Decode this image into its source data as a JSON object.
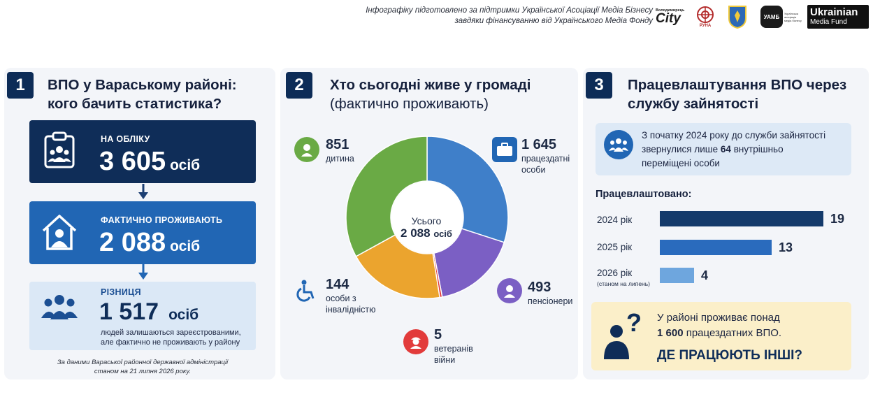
{
  "header": {
    "credit_line1": "Інфографіку підготовлено за підтримки Української Асоціації Медіа Бізнесу",
    "credit_line2": "завдяки фінансуванню від Українського Медіа Фонду",
    "logo_city_small": "Володимирець",
    "logo_city": "City",
    "logo_runa": "РУНА",
    "logo_uamb": "УАМБ",
    "logo_uamb_side": "Українська асоціація медіа бізнесу",
    "logo_umf1": "Ukrainian",
    "logo_umf2": "Media Fund"
  },
  "panel1": {
    "number": "1",
    "title_line1": "ВПО у Вараському районі:",
    "title_line2": "кого бачить статистика?",
    "registered_label": "НА ОБЛІКУ",
    "registered_value": "3 605",
    "registered_unit": "осіб",
    "actual_label": "ФАКТИЧНО ПРОЖИВАЮТЬ",
    "actual_value": "2 088",
    "actual_unit": "осіб",
    "diff_label": "РІЗНИЦЯ",
    "diff_value": "1 517",
    "diff_unit": "осіб",
    "diff_note_line1": "людей залишаються зареєстрованими,",
    "diff_note_line2": "але фактично не проживають у району",
    "source_line1": "За даними Вараської районної державної адміністрації",
    "source_line2": "станом на 21 липня 2026 року."
  },
  "panel2": {
    "number": "2",
    "title_line1": "Хто сьогодні живе у громаді",
    "title_line2": "(фактично проживають)",
    "center_label": "Усього",
    "center_value": "2 088",
    "center_unit": "осіб",
    "labels": {
      "child_value": "851",
      "child_text": "дитина",
      "workers_value": "1 645",
      "workers_text1": "працездатні",
      "workers_text2": "особи",
      "disabled_value": "144",
      "disabled_text1": "особи з",
      "disabled_text2": "інвалідністю",
      "veterans_value": "5",
      "veterans_text1": "ветеранів",
      "veterans_text2": "війни",
      "pensioners_value": "493",
      "pensioners_text": "пенсіонери"
    }
  },
  "panel3": {
    "number": "3",
    "title_line1": "Працевлаштування ВПО через",
    "title_line2": "службу зайнятості",
    "info_line1": "З початку 2024 року до служби зайнятості",
    "info_line2_pre": "звернулися лише",
    "info_line2_num": "64",
    "info_line2_post": "внутрішньо",
    "info_line3": "переміщені особи",
    "employed_heading": "Працевлаштовано:",
    "year_note": "(станом на липень)",
    "question_line1": "У районі проживає понад",
    "question_line2_num": "1 600",
    "question_line2_post": "працездатних ВПО.",
    "question_cta": "ДЕ ПРАЦЮЮТЬ ІНШІ?"
  },
  "chart_data": [
    {
      "type": "pie",
      "title": "Хто сьогодні живе у громаді",
      "subtitle": "(фактично проживають)",
      "center_label": "Усього 2 088 осіб",
      "donut": true,
      "categories": [
        "працездатні особи",
        "пенсіонери",
        "ветеранів війни",
        "особи з інвалідністю",
        "дитина"
      ],
      "values": [
        1645,
        493,
        5,
        144,
        851
      ],
      "colors": [
        "#3f7fc9",
        "#7b5fc4",
        "#e23b3b",
        "#eba42e",
        "#6aaa45"
      ],
      "arc_shares": [
        0.3,
        0.17,
        0.005,
        0.195,
        0.33
      ]
    },
    {
      "type": "bar",
      "orientation": "horizontal",
      "title": "Працевлаштовано:",
      "categories": [
        "2024 рік",
        "2025 рік",
        "2026 рік"
      ],
      "values": [
        19,
        13,
        4
      ],
      "colors": [
        "#143a6b",
        "#2a6bbd",
        "#6ea6de"
      ],
      "xlim": [
        0,
        19
      ]
    }
  ]
}
